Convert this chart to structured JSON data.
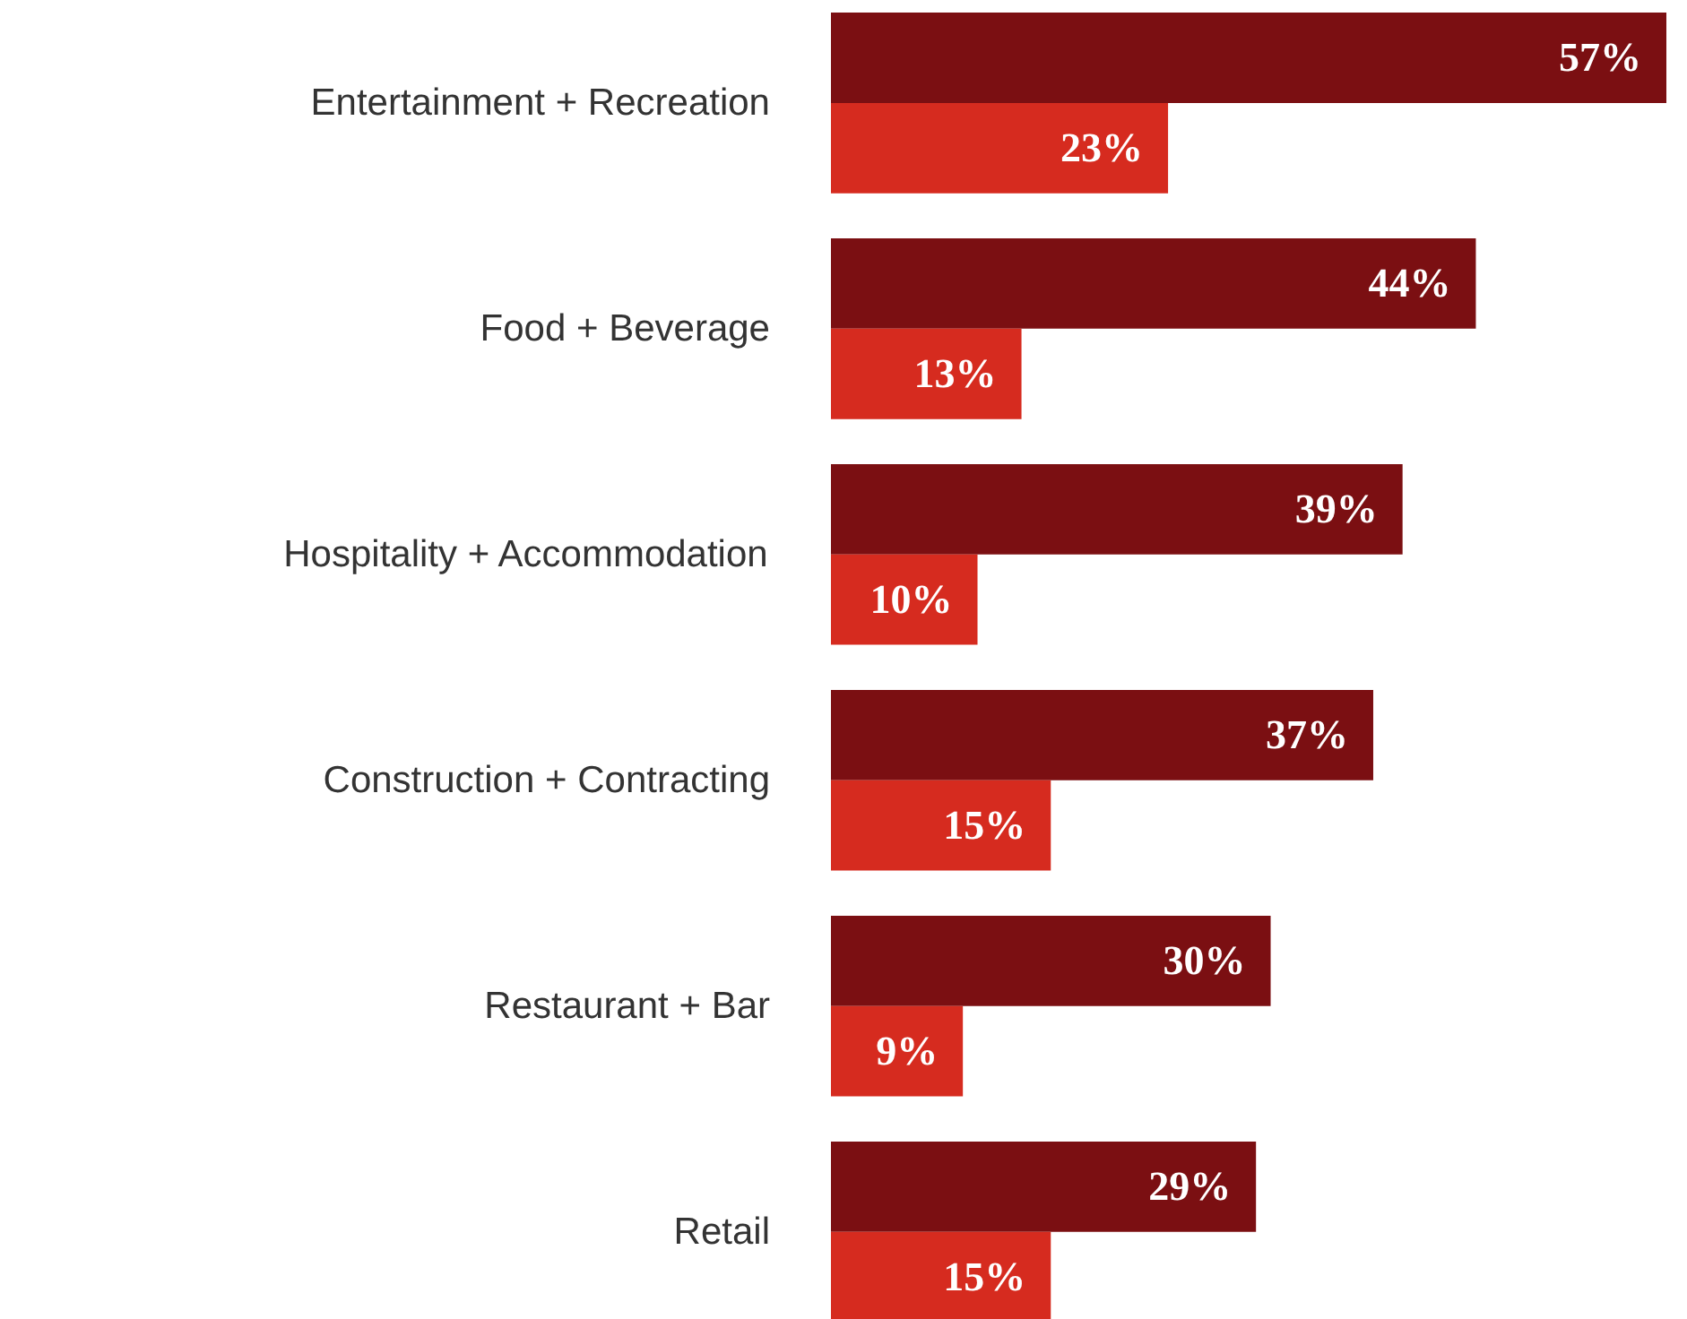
{
  "chart_data": {
    "type": "bar",
    "orientation": "horizontal",
    "categories": [
      "Entertainment + Recreation",
      "Food + Beverage",
      "Hospitality + Accommodation",
      "Construction + Contracting",
      "Restaurant + Bar",
      "Retail"
    ],
    "series": [
      {
        "color": "#7b0f12",
        "values": [
          57,
          44,
          39,
          37,
          30,
          29
        ],
        "value_labels": [
          "57%",
          "44%",
          "39%",
          "37%",
          "30%",
          "29%"
        ]
      },
      {
        "color": "#d62b1f",
        "values": [
          23,
          13,
          10,
          15,
          9,
          15
        ],
        "value_labels": [
          "23%",
          "13%",
          "10%",
          "15%",
          "9%",
          "15%"
        ]
      }
    ]
  }
}
